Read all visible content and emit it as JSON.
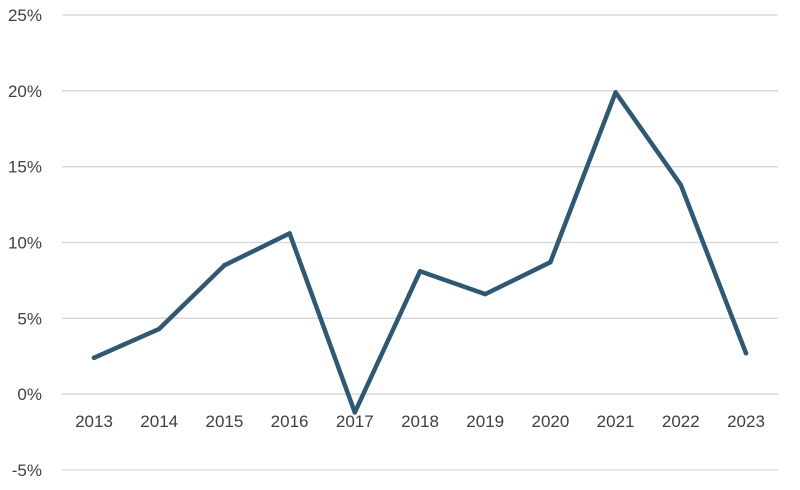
{
  "chart_data": {
    "type": "line",
    "title": "",
    "xlabel": "",
    "ylabel": "",
    "categories": [
      "2013",
      "2014",
      "2015",
      "2016",
      "2017",
      "2018",
      "2019",
      "2020",
      "2021",
      "2022",
      "2023"
    ],
    "series": [
      {
        "values": [
          2.4,
          4.3,
          8.5,
          10.6,
          -1.2,
          8.1,
          6.6,
          8.7,
          19.9,
          13.8,
          2.7
        ],
        "color": "#2f5873"
      }
    ],
    "ylim": [
      -5,
      25
    ],
    "yticks": [
      25,
      20,
      15,
      10,
      5,
      0,
      -5
    ],
    "ytick_labels": [
      "25%",
      "20%",
      "15%",
      "10%",
      "5%",
      "0%",
      "-5%"
    ],
    "grid": true,
    "legend": "none"
  }
}
